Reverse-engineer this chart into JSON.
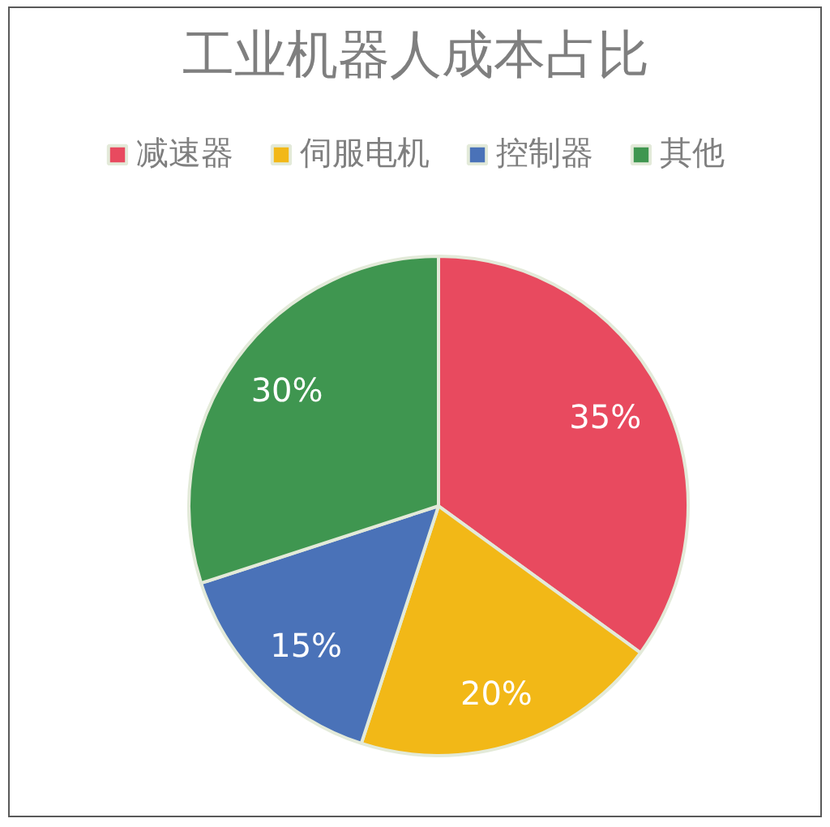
{
  "chart_data": {
    "type": "pie",
    "title": "工业机器人成本占比",
    "categories": [
      "减速器",
      "伺服电机",
      "控制器",
      "其他"
    ],
    "values": [
      35,
      20,
      15,
      30
    ],
    "colors": [
      "#e84a5f",
      "#f2b817",
      "#4a72b8",
      "#3f9650"
    ],
    "value_labels": [
      "35%",
      "20%",
      "15%",
      "30%"
    ],
    "legend": "top"
  }
}
